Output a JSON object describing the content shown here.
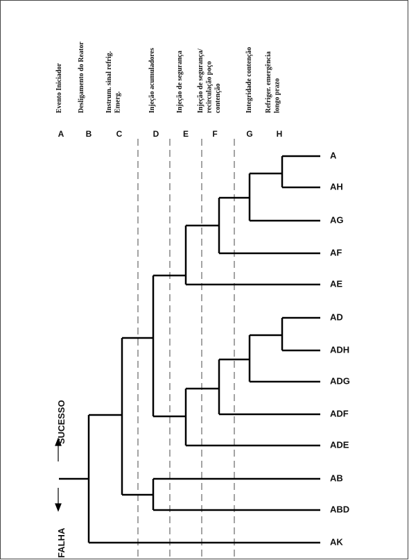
{
  "columns": [
    {
      "letter": "A",
      "label": [
        "Evento Iniciador"
      ]
    },
    {
      "letter": "B",
      "label": [
        "Desligamento do Reator"
      ]
    },
    {
      "letter": "C",
      "label": [
        "Instrum. sinal refrig.",
        "Emerg."
      ]
    },
    {
      "letter": "D",
      "label": [
        "Injeção acumuladores"
      ]
    },
    {
      "letter": "E",
      "label": [
        "Injeção de segurança"
      ]
    },
    {
      "letter": "F",
      "label": [
        "Injeção de segurança/",
        "recirculação poço",
        "contenção"
      ]
    },
    {
      "letter": "G",
      "label": [
        "Integridade contenção"
      ]
    },
    {
      "letter": "H",
      "label": [
        "Refriger. emergência",
        "longo prazo"
      ]
    }
  ],
  "outcomes": [
    "A",
    "AH",
    "AG",
    "AF",
    "AE",
    "AD",
    "ADH",
    "ADG",
    "ADF",
    "ADE",
    "AB",
    "ABD",
    "AK"
  ],
  "success_label": "SUCESSO",
  "failure_label": "FALHA"
}
